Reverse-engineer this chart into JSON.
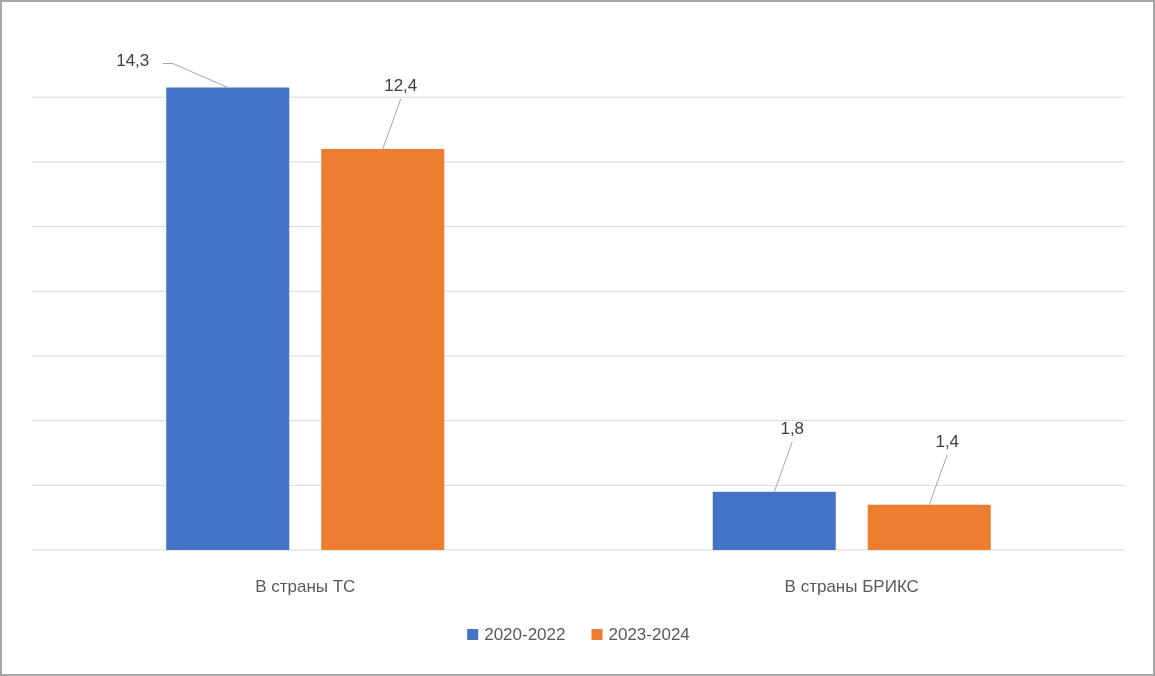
{
  "chart_data": {
    "type": "bar",
    "categories": [
      "В страны ТС",
      "В страны БРИКС"
    ],
    "series": [
      {
        "name": "2020-2022",
        "color": "#4472c4",
        "values": [
          14.3,
          1.8
        ],
        "value_labels": [
          "14,3",
          "1,8"
        ]
      },
      {
        "name": "2023-2024",
        "color": "#ed7d31",
        "values": [
          12.4,
          1.4
        ],
        "value_labels": [
          "12,4",
          "1,4"
        ]
      }
    ],
    "grid": "y",
    "tick_labels": "x",
    "legend": "bottom"
  }
}
